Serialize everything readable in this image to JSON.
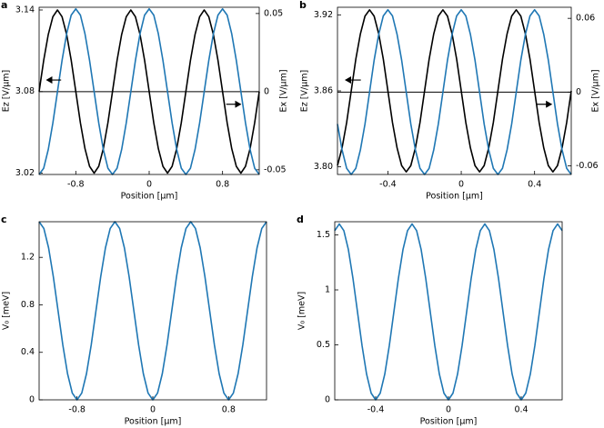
{
  "chart_data": [
    {
      "type": "line",
      "panel": "a",
      "xlabel": "Position [µm]",
      "ylabel": "Ez [V/µm]",
      "y2label": "Ex [V/µm]",
      "xlim": [
        -1.2,
        1.2
      ],
      "xticks": [
        -0.8,
        0,
        0.8
      ],
      "ylim": [
        3.019,
        3.142
      ],
      "yticks": [
        3.02,
        3.08,
        3.14
      ],
      "y2lim": [
        -0.053,
        0.054
      ],
      "y2ticks": [
        -0.05,
        0,
        0.05
      ],
      "x": [
        -1.2,
        -1.15,
        -1.1,
        -1.05,
        -1,
        -0.95,
        -0.9,
        -0.85,
        -0.8,
        -0.75,
        -0.7,
        -0.65,
        -0.6,
        -0.55,
        -0.5,
        -0.45,
        -0.4,
        -0.35,
        -0.3,
        -0.25,
        -0.2,
        -0.15,
        -0.1,
        -0.05,
        0,
        0.05,
        0.1,
        0.15,
        0.2,
        0.25,
        0.3,
        0.35,
        0.4,
        0.45,
        0.5,
        0.55,
        0.6,
        0.65,
        0.7,
        0.75,
        0.8,
        0.85,
        0.9,
        0.95,
        1,
        1.05,
        1.1,
        1.15,
        1.2
      ],
      "series": [
        {
          "color": "#000000",
          "values": [
            3.08,
            3.103,
            3.122,
            3.135,
            3.14,
            3.135,
            3.122,
            3.103,
            3.08,
            3.057,
            3.038,
            3.025,
            3.02,
            3.025,
            3.038,
            3.057,
            3.08,
            3.103,
            3.122,
            3.135,
            3.14,
            3.135,
            3.122,
            3.103,
            3.08,
            3.057,
            3.038,
            3.025,
            3.02,
            3.025,
            3.038,
            3.057,
            3.08,
            3.103,
            3.122,
            3.135,
            3.14,
            3.135,
            3.122,
            3.103,
            3.08,
            3.057,
            3.038,
            3.025,
            3.02,
            3.025,
            3.038,
            3.057,
            3.08
          ]
        },
        {
          "color": "#1f77b4",
          "axis": "y2",
          "values": [
            -0.053,
            -0.049,
            -0.037,
            -0.02,
            0,
            0.02,
            0.037,
            0.049,
            0.053,
            0.049,
            0.037,
            0.02,
            0,
            -0.02,
            -0.037,
            -0.049,
            -0.053,
            -0.049,
            -0.037,
            -0.02,
            0,
            0.02,
            0.037,
            0.049,
            0.053,
            0.049,
            0.037,
            0.02,
            0,
            -0.02,
            -0.037,
            -0.049,
            -0.053,
            -0.049,
            -0.037,
            -0.02,
            0,
            0.02,
            0.037,
            0.049,
            0.053,
            0.049,
            0.037,
            0.02,
            0,
            -0.02,
            -0.037,
            -0.049,
            -0.053
          ]
        }
      ]
    },
    {
      "type": "line",
      "panel": "b",
      "xlabel": "Position [µm]",
      "ylabel": "Ez [V/µm]",
      "y2label": "Ex [V/µm]",
      "xlim": [
        -0.675,
        0.6
      ],
      "xticks": [
        -0.4,
        0,
        0.4
      ],
      "ylim": [
        3.794,
        3.926
      ],
      "yticks": [
        {
          "value": 3.8,
          "label": "3.80"
        },
        3.86,
        3.92
      ],
      "y2lim": [
        -0.067,
        0.069
      ],
      "y2ticks": [
        -0.06,
        0,
        0.06
      ],
      "x": [
        -0.675,
        -0.65,
        -0.625,
        -0.6,
        -0.575,
        -0.55,
        -0.525,
        -0.5,
        -0.475,
        -0.45,
        -0.425,
        -0.4,
        -0.375,
        -0.35,
        -0.325,
        -0.3,
        -0.275,
        -0.25,
        -0.225,
        -0.2,
        -0.175,
        -0.15,
        -0.125,
        -0.1,
        -0.075,
        -0.05,
        -0.025,
        0,
        0.025,
        0.05,
        0.075,
        0.1,
        0.125,
        0.15,
        0.175,
        0.2,
        0.225,
        0.25,
        0.275,
        0.3,
        0.325,
        0.35,
        0.375,
        0.4,
        0.425,
        0.45,
        0.475,
        0.5,
        0.525,
        0.55,
        0.575,
        0.6
      ],
      "series": [
        {
          "color": "#000000",
          "values": [
            3.801,
            3.815,
            3.835,
            3.86,
            3.885,
            3.905,
            3.919,
            3.924,
            3.919,
            3.905,
            3.885,
            3.86,
            3.835,
            3.815,
            3.801,
            3.796,
            3.801,
            3.815,
            3.835,
            3.86,
            3.885,
            3.905,
            3.919,
            3.924,
            3.919,
            3.905,
            3.885,
            3.86,
            3.835,
            3.815,
            3.801,
            3.796,
            3.801,
            3.815,
            3.835,
            3.86,
            3.885,
            3.905,
            3.919,
            3.924,
            3.919,
            3.905,
            3.885,
            3.86,
            3.835,
            3.815,
            3.801,
            3.796,
            3.801,
            3.815,
            3.835,
            3.86
          ]
        },
        {
          "color": "#1f77b4",
          "axis": "y2",
          "values": [
            -0.026,
            -0.047,
            -0.062,
            -0.067,
            -0.062,
            -0.047,
            -0.026,
            0,
            0.026,
            0.047,
            0.062,
            0.067,
            0.062,
            0.047,
            0.026,
            0,
            -0.026,
            -0.047,
            -0.062,
            -0.067,
            -0.062,
            -0.047,
            -0.026,
            0,
            0.026,
            0.047,
            0.062,
            0.067,
            0.062,
            0.047,
            0.026,
            0,
            -0.026,
            -0.047,
            -0.062,
            -0.067,
            -0.062,
            -0.047,
            -0.026,
            0,
            0.026,
            0.047,
            0.062,
            0.067,
            0.062,
            0.047,
            0.026,
            0,
            -0.026,
            -0.047,
            -0.062,
            -0.067
          ]
        }
      ]
    },
    {
      "type": "line",
      "panel": "c",
      "xlabel": "Position [µm]",
      "ylabel": "V₀ [meV]",
      "xlim": [
        -1.2,
        1.2
      ],
      "xticks": [
        -0.8,
        0,
        0.8
      ],
      "ylim": [
        0,
        1.5
      ],
      "yticks": [
        0,
        0.4,
        0.8,
        1.2
      ],
      "x": [
        -1.2,
        -1.15,
        -1.1,
        -1.05,
        -1,
        -0.95,
        -0.9,
        -0.85,
        -0.8,
        -0.75,
        -0.7,
        -0.65,
        -0.6,
        -0.55,
        -0.5,
        -0.45,
        -0.4,
        -0.35,
        -0.3,
        -0.25,
        -0.2,
        -0.15,
        -0.1,
        -0.05,
        0,
        0.05,
        0.1,
        0.15,
        0.2,
        0.25,
        0.3,
        0.35,
        0.4,
        0.45,
        0.5,
        0.55,
        0.6,
        0.65,
        0.7,
        0.75,
        0.8,
        0.85,
        0.9,
        0.95,
        1,
        1.05,
        1.1,
        1.15,
        1.2
      ],
      "series": [
        {
          "color": "#1f77b4",
          "values": [
            1.5,
            1.443,
            1.28,
            1.037,
            0.75,
            0.463,
            0.22,
            0.057,
            0,
            0.057,
            0.22,
            0.463,
            0.75,
            1.037,
            1.28,
            1.443,
            1.5,
            1.443,
            1.28,
            1.037,
            0.75,
            0.463,
            0.22,
            0.057,
            0,
            0.057,
            0.22,
            0.463,
            0.75,
            1.037,
            1.28,
            1.443,
            1.5,
            1.443,
            1.28,
            1.037,
            0.75,
            0.463,
            0.22,
            0.057,
            0,
            0.057,
            0.22,
            0.463,
            0.75,
            1.037,
            1.28,
            1.443,
            1.5
          ]
        }
      ]
    },
    {
      "type": "line",
      "panel": "d",
      "xlabel": "Position [µm]",
      "ylabel": "V₀ [meV]",
      "xlim": [
        -0.625,
        0.625
      ],
      "xticks": [
        -0.4,
        0,
        0.4
      ],
      "ylim": [
        0,
        1.62
      ],
      "yticks": [
        0,
        0.5,
        1,
        1.5
      ],
      "x": [
        -0.625,
        -0.6,
        -0.575,
        -0.55,
        -0.525,
        -0.5,
        -0.475,
        -0.45,
        -0.425,
        -0.4,
        -0.375,
        -0.35,
        -0.325,
        -0.3,
        -0.275,
        -0.25,
        -0.225,
        -0.2,
        -0.175,
        -0.15,
        -0.125,
        -0.1,
        -0.075,
        -0.05,
        -0.025,
        0,
        0.025,
        0.05,
        0.075,
        0.1,
        0.125,
        0.15,
        0.175,
        0.2,
        0.225,
        0.25,
        0.275,
        0.3,
        0.325,
        0.35,
        0.375,
        0.4,
        0.425,
        0.45,
        0.475,
        0.5,
        0.525,
        0.55,
        0.575,
        0.6,
        0.625
      ],
      "series": [
        {
          "color": "#1f77b4",
          "values": [
            1.539,
            1.6,
            1.539,
            1.366,
            1.106,
            0.8,
            0.494,
            0.234,
            0.061,
            0,
            0.061,
            0.234,
            0.494,
            0.8,
            1.106,
            1.366,
            1.539,
            1.6,
            1.539,
            1.366,
            1.106,
            0.8,
            0.494,
            0.234,
            0.061,
            0,
            0.061,
            0.234,
            0.494,
            0.8,
            1.106,
            1.366,
            1.539,
            1.6,
            1.539,
            1.366,
            1.106,
            0.8,
            0.494,
            0.234,
            0.061,
            0,
            0.061,
            0.234,
            0.494,
            0.8,
            1.106,
            1.366,
            1.539,
            1.6,
            1.539
          ]
        }
      ]
    }
  ]
}
